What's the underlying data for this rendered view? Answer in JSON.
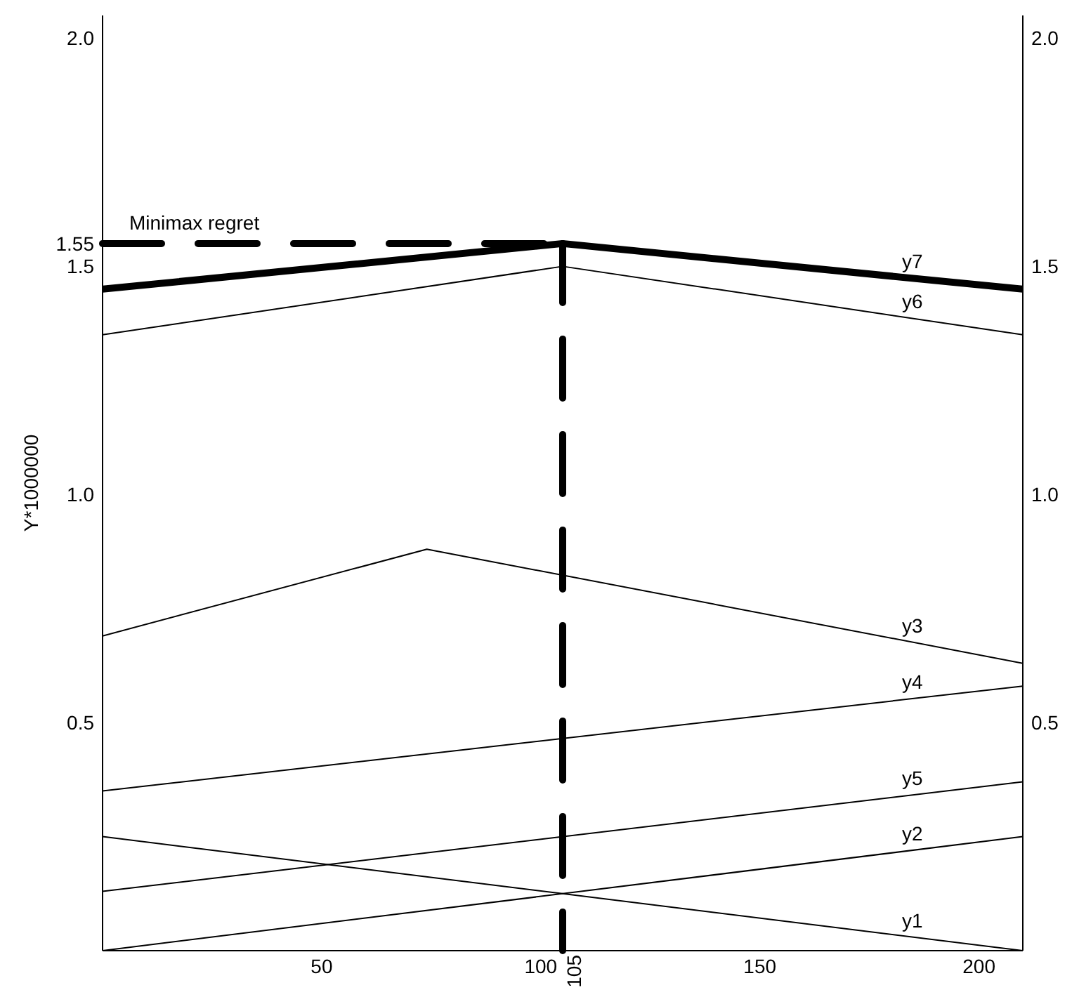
{
  "chart_data": {
    "type": "line",
    "ylabel": "Y*1000000",
    "xlim": [
      0,
      210
    ],
    "xticks": [
      50,
      100,
      150,
      200
    ],
    "ylim": [
      0,
      2.05
    ],
    "yticks": [
      0.5,
      {
        "value": 1,
        "label": "1.0"
      },
      1.5,
      1.55,
      {
        "value": 2,
        "label": "2.0"
      }
    ],
    "y2lim": [
      0,
      2.05
    ],
    "y2ticks": [
      0.5,
      {
        "value": 1,
        "label": "1.0"
      },
      1.5,
      {
        "value": 2,
        "label": "2.0"
      }
    ],
    "marker": "none",
    "series": [
      {
        "name": "y1",
        "color": "#000000",
        "x": [
          0,
          210
        ],
        "values": [
          0.25,
          0
        ]
      },
      {
        "name": "y2",
        "color": "#000000",
        "x": [
          0,
          210
        ],
        "values": [
          0,
          0.25
        ]
      },
      {
        "name": "y3",
        "color": "#000000",
        "x": [
          0,
          74,
          210
        ],
        "values": [
          0.69,
          0.88,
          0.63
        ]
      },
      {
        "name": "y4",
        "color": "#000000",
        "x": [
          0,
          210
        ],
        "values": [
          0.35,
          0.58
        ]
      },
      {
        "name": "y5",
        "color": "#000000",
        "x": [
          0,
          210
        ],
        "values": [
          0.13,
          0.37
        ]
      },
      {
        "name": "y6",
        "color": "#000000",
        "x": [
          0,
          105,
          210
        ],
        "values": [
          1.35,
          1.5,
          1.35
        ]
      },
      {
        "name": "y7",
        "color": "#000000",
        "x": [
          0,
          105,
          210
        ],
        "values": [
          1.45,
          1.55,
          1.45
        ]
      }
    ],
    "ref_lines": [
      {
        "axis": "y",
        "value": 1.55,
        "label": "Minimax regret",
        "color": "#000000",
        "line_style": "dashed"
      },
      {
        "axis": "x",
        "value": 105,
        "label": "105",
        "color": "#000000",
        "line_style": "dashed"
      }
    ]
  }
}
